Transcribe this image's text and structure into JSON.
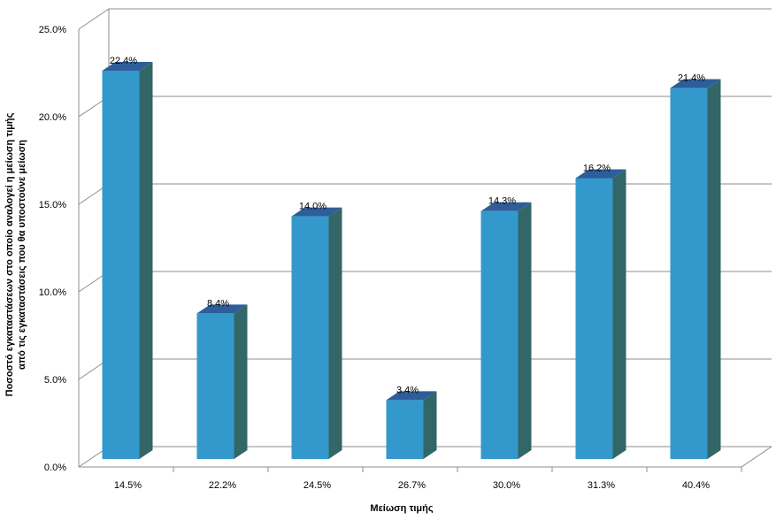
{
  "chart_data": {
    "type": "bar",
    "categories": [
      "14.5%",
      "22.2%",
      "24.5%",
      "26.7%",
      "30.0%",
      "31.3%",
      "40.4%"
    ],
    "values": [
      22.4,
      8.4,
      14.0,
      3.4,
      14.3,
      16.2,
      21.4
    ],
    "data_labels": [
      "22.4%",
      "8.4%",
      "14.0%",
      "3.4%",
      "14.3%",
      "16.2%",
      "21.4%"
    ],
    "yticks": [
      "0.0%",
      "5.0%",
      "10.0%",
      "15.0%",
      "20.0%",
      "25.0%"
    ],
    "ylim": [
      0,
      25
    ],
    "xlabel": "Μείωση τιμής",
    "ylabel_lines": [
      "Ποσοστό εγκαταστάσεων  στο οποίο αναλογεί η μείωση τιμής",
      "από τις εγκαταστάσεις που θα υποστούνε μείωση"
    ],
    "grid": true,
    "legend": "none",
    "colors": {
      "bar_front": "#3399cc",
      "bar_side": "#336666",
      "bar_top": "#2e5e9a",
      "grid": "#8c8c8c"
    }
  }
}
